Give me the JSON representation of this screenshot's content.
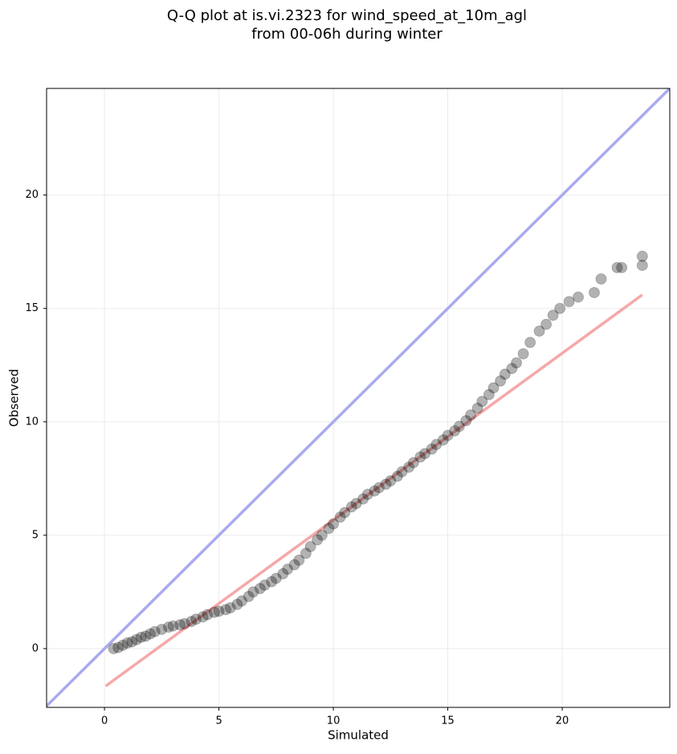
{
  "chart_data": {
    "type": "scatter",
    "title": "Q-Q plot at is.vi.2323 for wind_speed_at_10m_agl",
    "subtitle": "from 00-06h during winter",
    "x_label": "Simulated",
    "y_label": "Observed",
    "xlim": [
      -2.53,
      24.7
    ],
    "ylim": [
      -2.59,
      24.7
    ],
    "xticks": [
      0,
      5,
      10,
      15,
      20
    ],
    "yticks": [
      0,
      5,
      10,
      15,
      20
    ],
    "grid": true,
    "points_color": "#000000",
    "x": [
      0.4,
      0.6,
      0.8,
      1.0,
      1.2,
      1.4,
      1.6,
      1.8,
      2.0,
      2.2,
      2.5,
      2.8,
      3.0,
      3.3,
      3.5,
      3.8,
      4.0,
      4.3,
      4.5,
      4.8,
      5.0,
      5.3,
      5.5,
      5.8,
      6.0,
      6.3,
      6.5,
      6.8,
      7.0,
      7.3,
      7.5,
      7.8,
      8.0,
      8.3,
      8.5,
      8.8,
      9.0,
      9.3,
      9.5,
      9.8,
      10.0,
      10.3,
      10.5,
      10.8,
      11.0,
      11.3,
      11.5,
      11.8,
      12.0,
      12.3,
      12.5,
      12.8,
      13.0,
      13.3,
      13.5,
      13.8,
      14.0,
      14.3,
      14.5,
      14.8,
      15.0,
      15.3,
      15.5,
      15.8,
      16.0,
      16.3,
      16.5,
      16.8,
      17.0,
      17.3,
      17.5,
      17.8,
      18.0,
      18.3,
      18.6,
      19.0,
      19.3,
      19.6,
      19.9,
      20.3,
      20.7,
      21.4,
      21.7,
      22.4,
      22.6,
      23.5,
      23.5
    ],
    "values": [
      0.0,
      0.05,
      0.15,
      0.25,
      0.3,
      0.4,
      0.5,
      0.55,
      0.65,
      0.75,
      0.85,
      0.95,
      1.0,
      1.05,
      1.1,
      1.2,
      1.3,
      1.4,
      1.5,
      1.6,
      1.65,
      1.72,
      1.8,
      1.95,
      2.1,
      2.3,
      2.5,
      2.65,
      2.8,
      2.95,
      3.1,
      3.3,
      3.5,
      3.7,
      3.9,
      4.2,
      4.5,
      4.8,
      5.0,
      5.3,
      5.5,
      5.8,
      6.0,
      6.25,
      6.4,
      6.6,
      6.8,
      6.95,
      7.1,
      7.25,
      7.4,
      7.6,
      7.8,
      8.0,
      8.2,
      8.45,
      8.6,
      8.8,
      9.0,
      9.2,
      9.4,
      9.6,
      9.8,
      10.05,
      10.3,
      10.6,
      10.9,
      11.2,
      11.5,
      11.8,
      12.1,
      12.35,
      12.6,
      13.0,
      13.5,
      14.0,
      14.3,
      14.7,
      15.0,
      15.3,
      15.5,
      15.7,
      16.3,
      16.8,
      16.8,
      16.9,
      17.3
    ],
    "lines": [
      {
        "color": "#aaaaf0",
        "x": [
          -2.53,
          24.7
        ],
        "values": [
          -2.53,
          24.7
        ]
      },
      {
        "color": "#f5a8a8",
        "x": [
          0.05,
          23.5
        ],
        "values": [
          -1.65,
          15.6
        ]
      }
    ]
  }
}
